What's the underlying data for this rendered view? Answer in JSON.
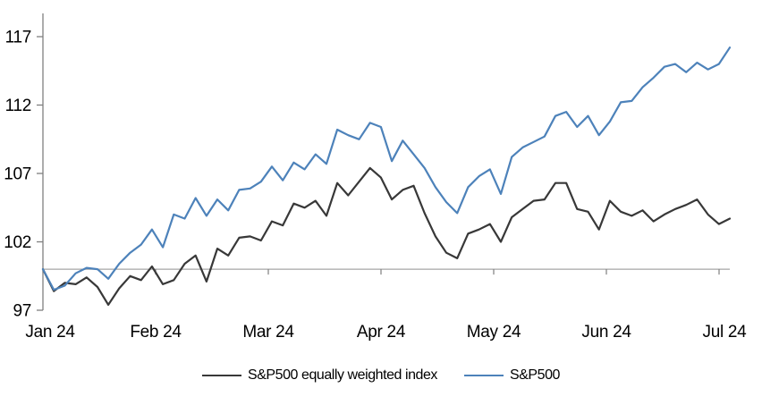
{
  "chart_data": {
    "type": "line",
    "title": "",
    "xlabel": "",
    "ylabel": "",
    "x_tick_labels": [
      "Jan 24",
      "Feb 24",
      "Mar 24",
      "Apr 24",
      "May 24",
      "Jun 24",
      "Jul 24"
    ],
    "y_ticks": [
      97,
      102,
      107,
      112,
      117
    ],
    "ylim": [
      97,
      118.7
    ],
    "baseline_value": 100,
    "grid": "off",
    "legend_position": "bottom",
    "series": [
      {
        "name": "S&P500 equally weighted index",
        "color": "#383838",
        "values": [
          100.0,
          98.4,
          99.0,
          98.9,
          99.4,
          98.7,
          97.4,
          98.6,
          99.5,
          99.2,
          100.2,
          98.9,
          99.2,
          100.4,
          101.0,
          99.1,
          101.5,
          101.0,
          102.3,
          102.4,
          102.1,
          103.5,
          103.2,
          104.8,
          104.5,
          105.0,
          103.9,
          106.3,
          105.4,
          106.4,
          107.4,
          106.7,
          105.1,
          105.8,
          106.1,
          104.1,
          102.4,
          101.2,
          100.8,
          102.6,
          102.9,
          103.3,
          102.0,
          103.8,
          104.4,
          105.0,
          105.1,
          106.3,
          106.3,
          104.4,
          104.2,
          102.9,
          105.0,
          104.2,
          103.9,
          104.3,
          103.5,
          104.0,
          104.4,
          104.7,
          105.1,
          104.0,
          103.3,
          103.7
        ]
      },
      {
        "name": "S&P500",
        "color": "#4d82ba",
        "values": [
          100.0,
          98.5,
          98.8,
          99.7,
          100.1,
          100.0,
          99.3,
          100.4,
          101.2,
          101.8,
          102.9,
          101.6,
          104.0,
          103.7,
          105.2,
          103.9,
          105.1,
          104.3,
          105.8,
          105.9,
          106.4,
          107.5,
          106.5,
          107.8,
          107.3,
          108.4,
          107.7,
          110.2,
          109.8,
          109.5,
          110.7,
          110.4,
          107.9,
          109.4,
          108.4,
          107.4,
          106.0,
          104.9,
          104.1,
          106.0,
          106.8,
          107.3,
          105.5,
          108.2,
          108.9,
          109.3,
          109.7,
          111.2,
          111.5,
          110.4,
          111.2,
          109.8,
          110.8,
          112.2,
          112.3,
          113.3,
          114.0,
          114.8,
          115.0,
          114.4,
          115.1,
          114.6,
          115.0,
          116.2
        ]
      }
    ]
  },
  "colors": {
    "axis": "#7f7f7f",
    "baseline": "#a6a6a6",
    "text": "#000000",
    "background": "#ffffff"
  },
  "legend": {
    "items": [
      "S&P500 equally weighted index",
      "S&P500"
    ]
  }
}
